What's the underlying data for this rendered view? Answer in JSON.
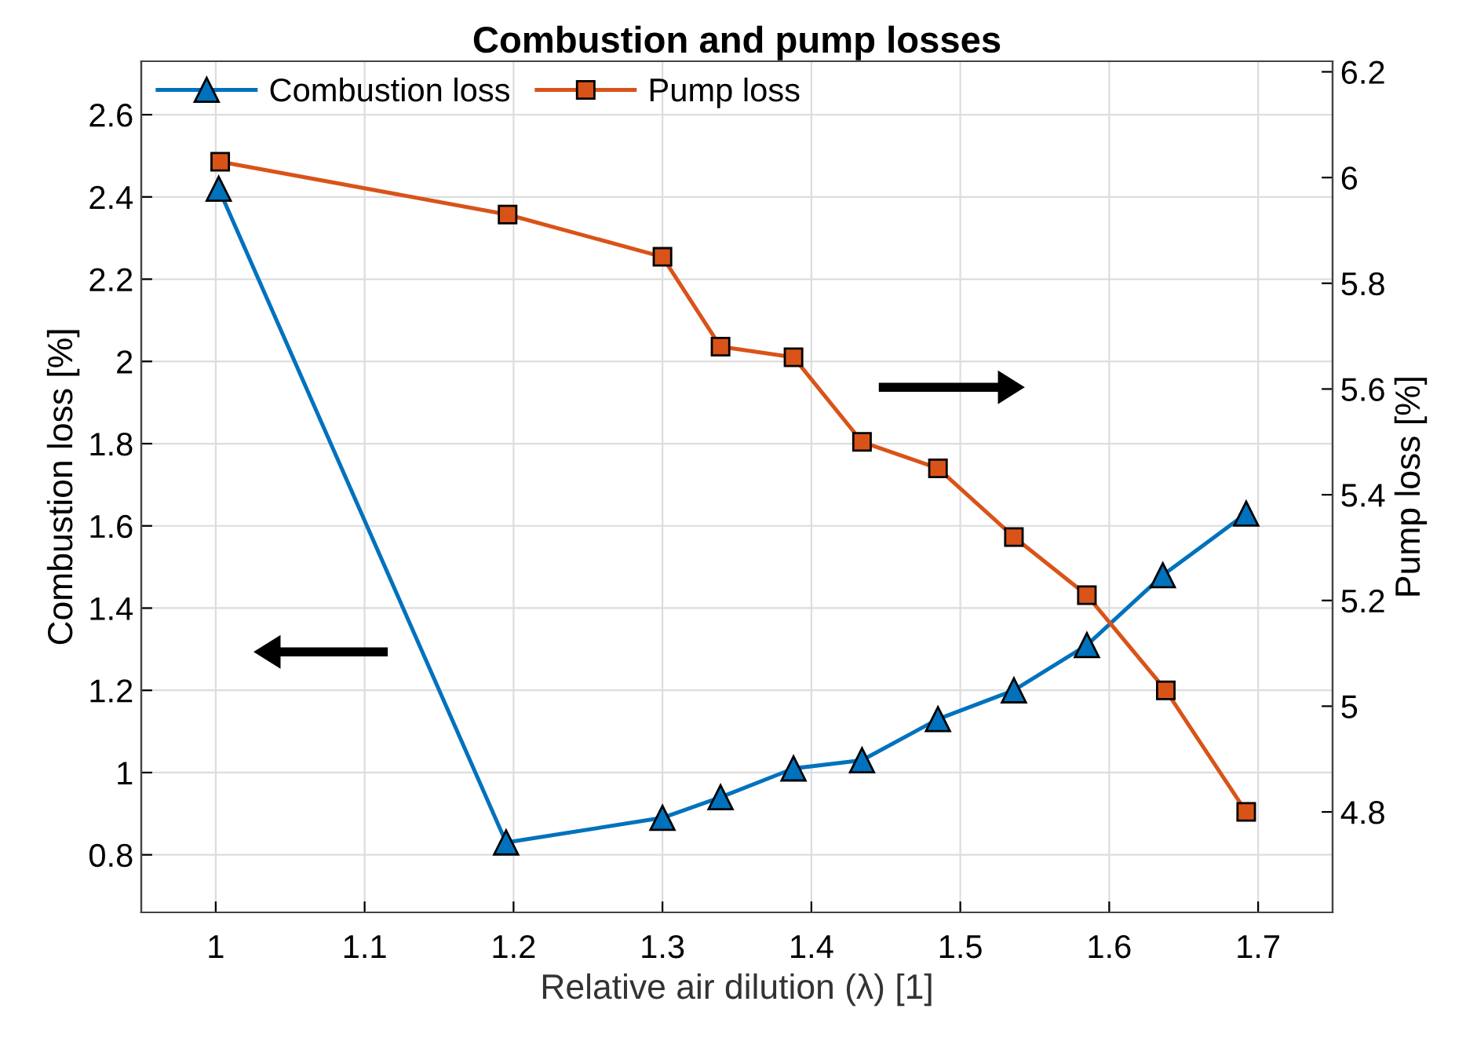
{
  "chart_data": {
    "type": "line",
    "title": "Combustion and pump losses",
    "xlabel": "Relative air dilution (λ) [1]",
    "ylabel": "Combustion loss [%]",
    "y2label": "Pump loss [%]",
    "series": [
      {
        "name": "Combustion loss",
        "color": "#0072bd",
        "marker": "triangle",
        "x": [
          1.002,
          1.195,
          1.3,
          1.339,
          1.388,
          1.434,
          1.485,
          1.536,
          1.585,
          1.636,
          1.692
        ],
        "values": [
          2.42,
          0.83,
          0.89,
          0.94,
          1.01,
          1.03,
          1.13,
          1.2,
          1.31,
          1.48,
          1.63
        ]
      },
      {
        "name": "Pump loss",
        "color": "#d95319",
        "marker": "square",
        "axis": "y2",
        "x": [
          1.003,
          1.196,
          1.3,
          1.339,
          1.388,
          1.434,
          1.485,
          1.536,
          1.585,
          1.638,
          1.692
        ],
        "values": [
          6.03,
          5.93,
          5.85,
          5.68,
          5.66,
          5.5,
          5.45,
          5.32,
          5.21,
          5.03,
          4.8
        ]
      }
    ],
    "xlim": [
      0.95,
      1.75
    ],
    "xticks": [
      1,
      1.1,
      1.2,
      1.3,
      1.4,
      1.5,
      1.6,
      1.7
    ],
    "ylim": [
      0.66,
      2.73
    ],
    "yticks": [
      0.8,
      1,
      1.2,
      1.4,
      1.6,
      1.8,
      2,
      2.2,
      2.4,
      2.6
    ],
    "y2lim": [
      4.61,
      6.22
    ],
    "y2ticks": [
      4.8,
      5,
      5.2,
      5.4,
      5.6,
      5.8,
      6,
      6.2
    ],
    "grid": true,
    "legend": "top left",
    "line_style": "solid"
  }
}
